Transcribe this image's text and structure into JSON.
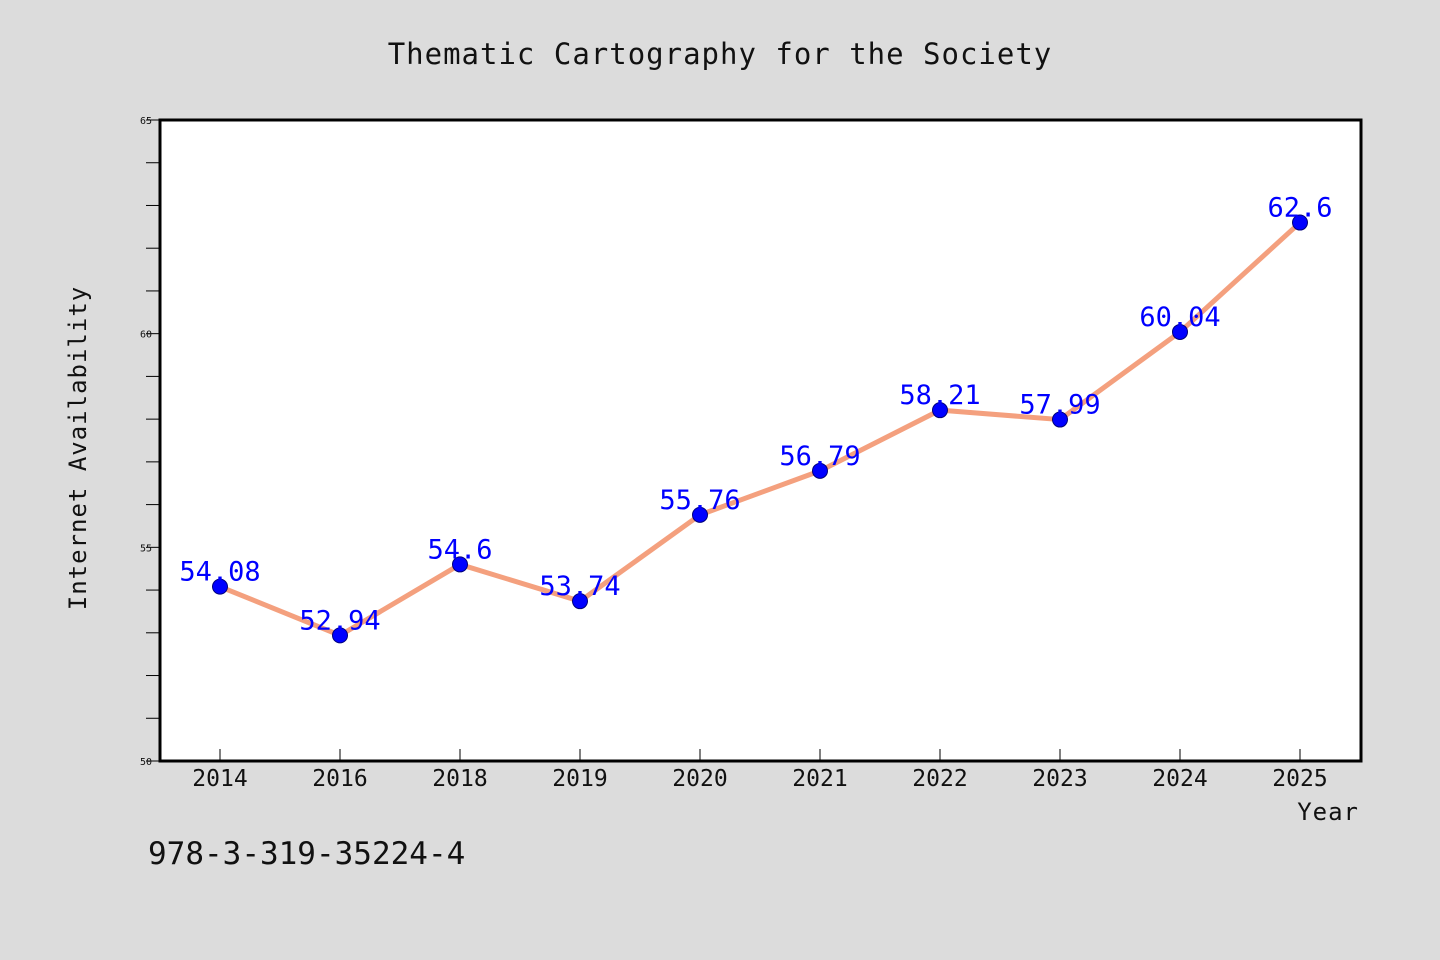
{
  "chart_data": {
    "type": "line",
    "title": "Thematic Cartography for the Society",
    "xlabel": "Year",
    "ylabel": "Internet Availability",
    "categories": [
      "2014",
      "2016",
      "2018",
      "2019",
      "2020",
      "2021",
      "2022",
      "2023",
      "2024",
      "2025"
    ],
    "series": [
      {
        "values": [
          54.08,
          52.94,
          54.6,
          53.74,
          55.76,
          56.79,
          58.21,
          57.99,
          60.04,
          62.6
        ],
        "data_labels": [
          "54.08",
          "52.94",
          "54.6",
          "53.74",
          "55.76",
          "56.79",
          "58.21",
          "57.99",
          "60.04",
          "62.6"
        ],
        "line_color": "#f4a07e",
        "marker_color": "#0000ff"
      }
    ],
    "ylim": [
      50,
      65
    ],
    "y_ticks": [
      "50",
      "55",
      "60",
      "65"
    ],
    "grid": false,
    "legend": "none"
  },
  "footer_text": "978-3-319-35224-4",
  "colors": {
    "background": "#dcdcdc",
    "plot_background": "#ffffff",
    "data_label": "#0000ff"
  }
}
